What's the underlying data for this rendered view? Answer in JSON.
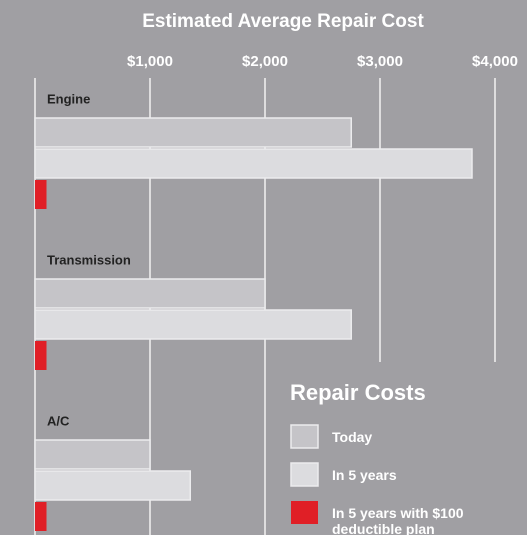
{
  "chart_data": {
    "type": "bar",
    "orientation": "horizontal",
    "title": "Estimated Average Repair Cost",
    "legend_title": "Repair Costs",
    "categories": [
      "Engine",
      "Transmission",
      "A/C"
    ],
    "series": [
      {
        "name": "Today",
        "color": "#c5c4c8",
        "values": [
          2750,
          2000,
          1000
        ]
      },
      {
        "name": "In 5 years",
        "color": "#dcdcdf",
        "values": [
          3800,
          2750,
          1350
        ]
      },
      {
        "name": "In 5 years with $100 deductible plan",
        "color": "#e01f26",
        "values": [
          100,
          100,
          100
        ]
      }
    ],
    "xlim": [
      0,
      4300
    ],
    "xticks": [
      {
        "value": 1000,
        "label": "$1,000"
      },
      {
        "value": 2000,
        "label": "$2,000"
      },
      {
        "value": 3000,
        "label": "$3,000"
      },
      {
        "value": 4000,
        "label": "$4,000"
      }
    ],
    "grid": true
  }
}
